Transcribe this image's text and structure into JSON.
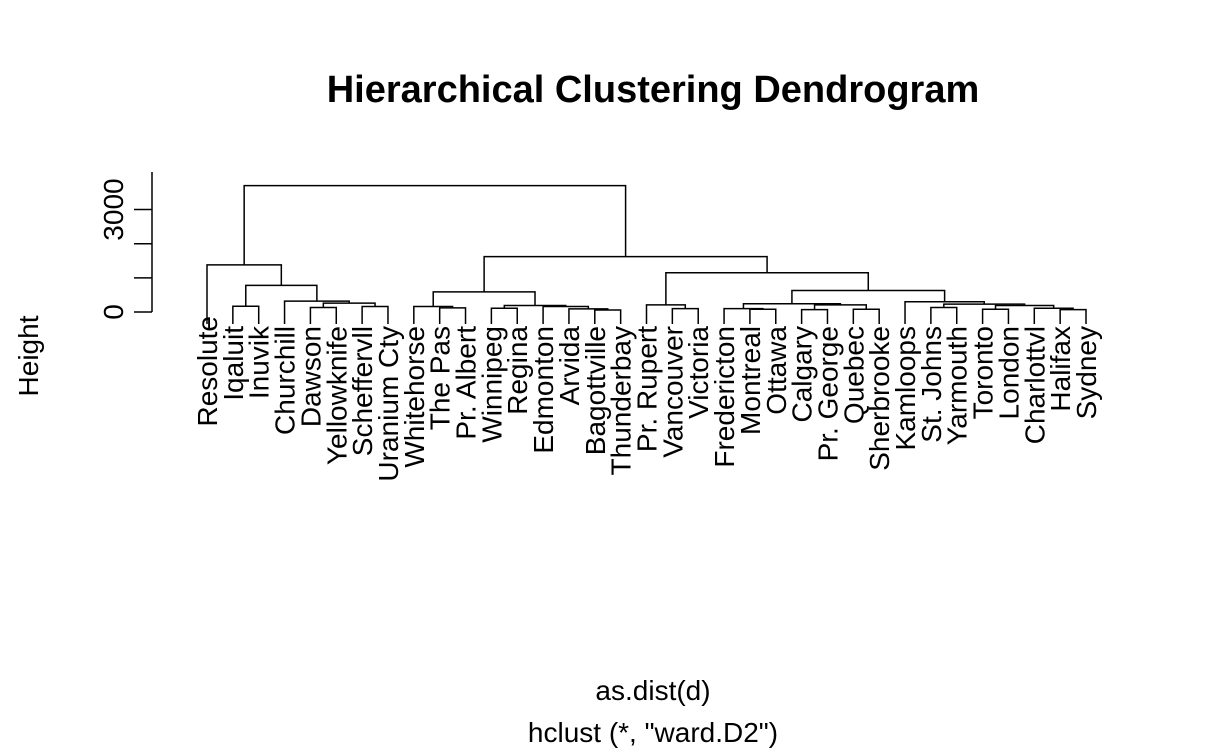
{
  "chart_data": {
    "type": "dendrogram",
    "title": "Hierarchical Clustering Dendrogram",
    "ylabel": "Height",
    "xlabel": "as.dist(d)",
    "sub": "hclust (*, \"ward.D2\")",
    "ylim": [
      0,
      4100
    ],
    "yticks": [
      0,
      1000,
      2000,
      3000
    ],
    "ytick_labels": [
      "0",
      "",
      "",
      "3000"
    ],
    "leaves": [
      "Resolute",
      "Iqaluit",
      "Inuvik",
      "Churchill",
      "Dawson",
      "Yellowknife",
      "Scheffervll",
      "Uranium Cty",
      "Whitehorse",
      "The Pas",
      "Pr. Albert",
      "Winnipeg",
      "Regina",
      "Edmonton",
      "Arvida",
      "Bagottville",
      "Thunderbay",
      "Pr. Rupert",
      "Vancouver",
      "Victoria",
      "Fredericton",
      "Montreal",
      "Ottawa",
      "Calgary",
      "Pr. George",
      "Quebec",
      "Sherbrooke",
      "Kamloops",
      "St. Johns",
      "Yarmouth",
      "Toronto",
      "London",
      "Charlottvl",
      "Halifax",
      "Sydney"
    ],
    "merges": [
      {
        "a": -2,
        "b": -3,
        "height": 170
      },
      {
        "a": -5,
        "b": -6,
        "height": 130
      },
      {
        "a": -7,
        "b": -8,
        "height": 160
      },
      {
        "a": 2,
        "b": 3,
        "height": 260
      },
      {
        "a": -4,
        "b": 4,
        "height": 320
      },
      {
        "a": 1,
        "b": 5,
        "height": 780
      },
      {
        "a": -1,
        "b": 6,
        "height": 1380
      },
      {
        "a": -10,
        "b": -11,
        "height": 120
      },
      {
        "a": -9,
        "b": 8,
        "height": 160
      },
      {
        "a": -12,
        "b": -13,
        "height": 110
      },
      {
        "a": -16,
        "b": -17,
        "height": 60
      },
      {
        "a": -15,
        "b": 11,
        "height": 90
      },
      {
        "a": -14,
        "b": 12,
        "height": 160
      },
      {
        "a": 10,
        "b": 13,
        "height": 190
      },
      {
        "a": 9,
        "b": 14,
        "height": 590
      },
      {
        "a": -19,
        "b": -20,
        "height": 100
      },
      {
        "a": -18,
        "b": 16,
        "height": 210
      },
      {
        "a": -22,
        "b": -23,
        "height": 80
      },
      {
        "a": -21,
        "b": 18,
        "height": 100
      },
      {
        "a": -24,
        "b": -25,
        "height": 70
      },
      {
        "a": -26,
        "b": -27,
        "height": 80
      },
      {
        "a": 20,
        "b": 21,
        "height": 210
      },
      {
        "a": 19,
        "b": 22,
        "height": 240
      },
      {
        "a": -34,
        "b": -35,
        "height": 70
      },
      {
        "a": -33,
        "b": 24,
        "height": 110
      },
      {
        "a": -31,
        "b": -32,
        "height": 80
      },
      {
        "a": 26,
        "b": 25,
        "height": 190
      },
      {
        "a": -29,
        "b": -30,
        "height": 130
      },
      {
        "a": 28,
        "b": 27,
        "height": 230
      },
      {
        "a": -28,
        "b": 29,
        "height": 300
      },
      {
        "a": 23,
        "b": 30,
        "height": 630
      },
      {
        "a": 17,
        "b": 31,
        "height": 1150
      },
      {
        "a": 15,
        "b": 32,
        "height": 1620
      },
      {
        "a": 7,
        "b": 33,
        "height": 3700
      }
    ]
  }
}
